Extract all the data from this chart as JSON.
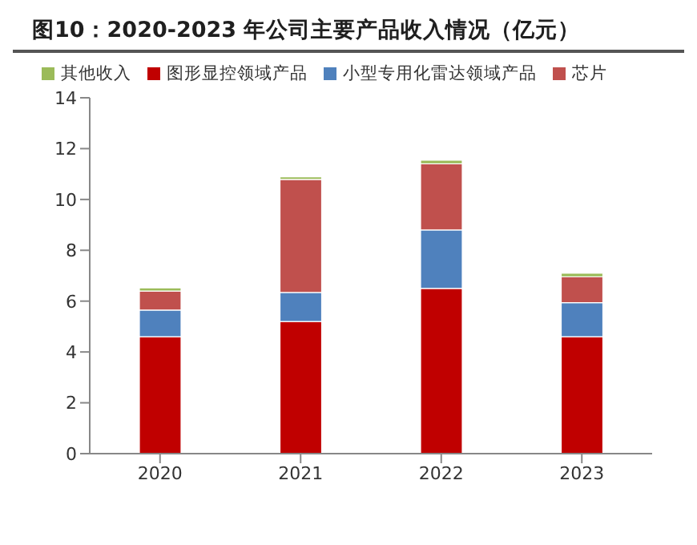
{
  "chart_data": {
    "type": "bar",
    "title": "图10：2020-2023 年公司主要产品收入情况（亿元）",
    "categories": [
      "2020",
      "2021",
      "2022",
      "2023"
    ],
    "series": [
      {
        "name": "图形显控领域产品",
        "color": "#c00000",
        "values": [
          4.6,
          5.2,
          6.5,
          4.6
        ]
      },
      {
        "name": "小型专用化雷达领域产品",
        "color": "#4f81bd",
        "values": [
          1.05,
          1.14,
          2.3,
          1.34
        ]
      },
      {
        "name": "芯片",
        "color": "#c0504d",
        "values": [
          0.75,
          4.45,
          2.6,
          1.02
        ]
      },
      {
        "name": "其他收入",
        "color": "#9bbb59",
        "values": [
          0.12,
          0.1,
          0.14,
          0.14
        ]
      }
    ],
    "stacked": true,
    "ylim": [
      0,
      14
    ],
    "yticks": [
      0,
      2,
      4,
      6,
      8,
      10,
      12,
      14
    ],
    "grid": false,
    "legend": "top"
  }
}
